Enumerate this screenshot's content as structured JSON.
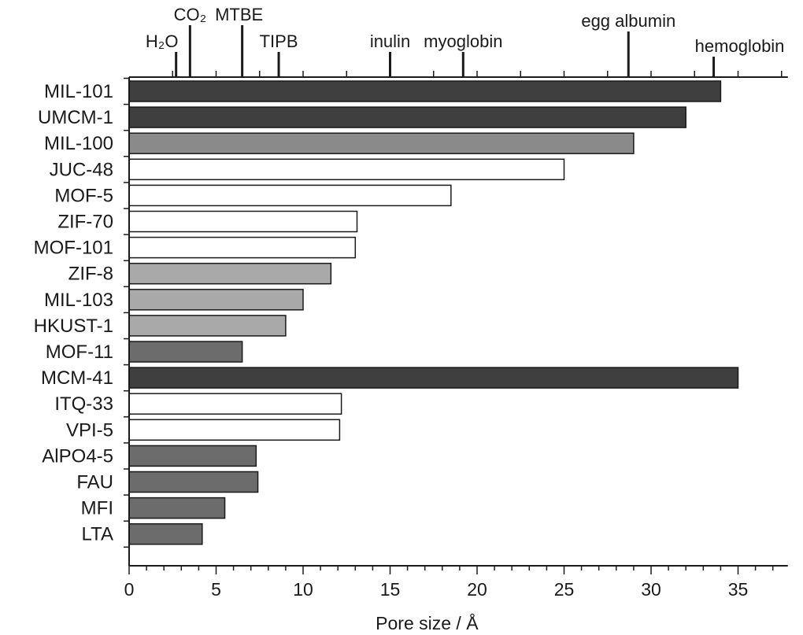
{
  "chart_data": {
    "type": "bar",
    "orientation": "horizontal",
    "xlabel": "Pore size / Å",
    "xlim": [
      0,
      37.5
    ],
    "x_major_ticks": [
      0,
      5,
      10,
      15,
      20,
      25,
      30,
      35
    ],
    "x_tick_labels": [
      "0",
      "5",
      "10",
      "15",
      "20",
      "25",
      "30",
      "35"
    ],
    "x_minor_step": 1,
    "grid": false,
    "categories": [
      "MIL-101",
      "UMCM-1",
      "MIL-100",
      "JUC-48",
      "MOF-5",
      "ZIF-70",
      "MOF-101",
      "ZIF-8",
      "MIL-103",
      "HKUST-1",
      "MOF-11",
      "MCM-41",
      "ITQ-33",
      "VPI-5",
      "AlPO4-5",
      "FAU",
      "MFI",
      "LTA"
    ],
    "values": [
      34.0,
      32.0,
      29.0,
      25.0,
      18.5,
      13.1,
      13.0,
      11.6,
      10.0,
      9.0,
      6.5,
      35.0,
      12.2,
      12.1,
      7.3,
      7.4,
      5.5,
      4.2
    ],
    "bar_fill": [
      "#3f3f3f",
      "#3f3f3f",
      "#8a8a8a",
      "#ffffff",
      "#ffffff",
      "#ffffff",
      "#ffffff",
      "#a9a9a9",
      "#a9a9a9",
      "#a9a9a9",
      "#6c6c6c",
      "#3f3f3f",
      "#ffffff",
      "#ffffff",
      "#6c6c6c",
      "#6c6c6c",
      "#6c6c6c",
      "#6c6c6c"
    ],
    "molecules": [
      {
        "name": "H₂O",
        "size": 2.7
      },
      {
        "name": "CO₂",
        "size": 3.5
      },
      {
        "name": "MTBE",
        "size": 6.5
      },
      {
        "name": "TIPB",
        "size": 8.6
      },
      {
        "name": "inulin",
        "size": 15.0
      },
      {
        "name": "myoglobin",
        "size": 19.2
      },
      {
        "name": "egg albumin",
        "size": 28.7
      },
      {
        "name": "hemoglobin",
        "size": 33.6
      }
    ]
  }
}
